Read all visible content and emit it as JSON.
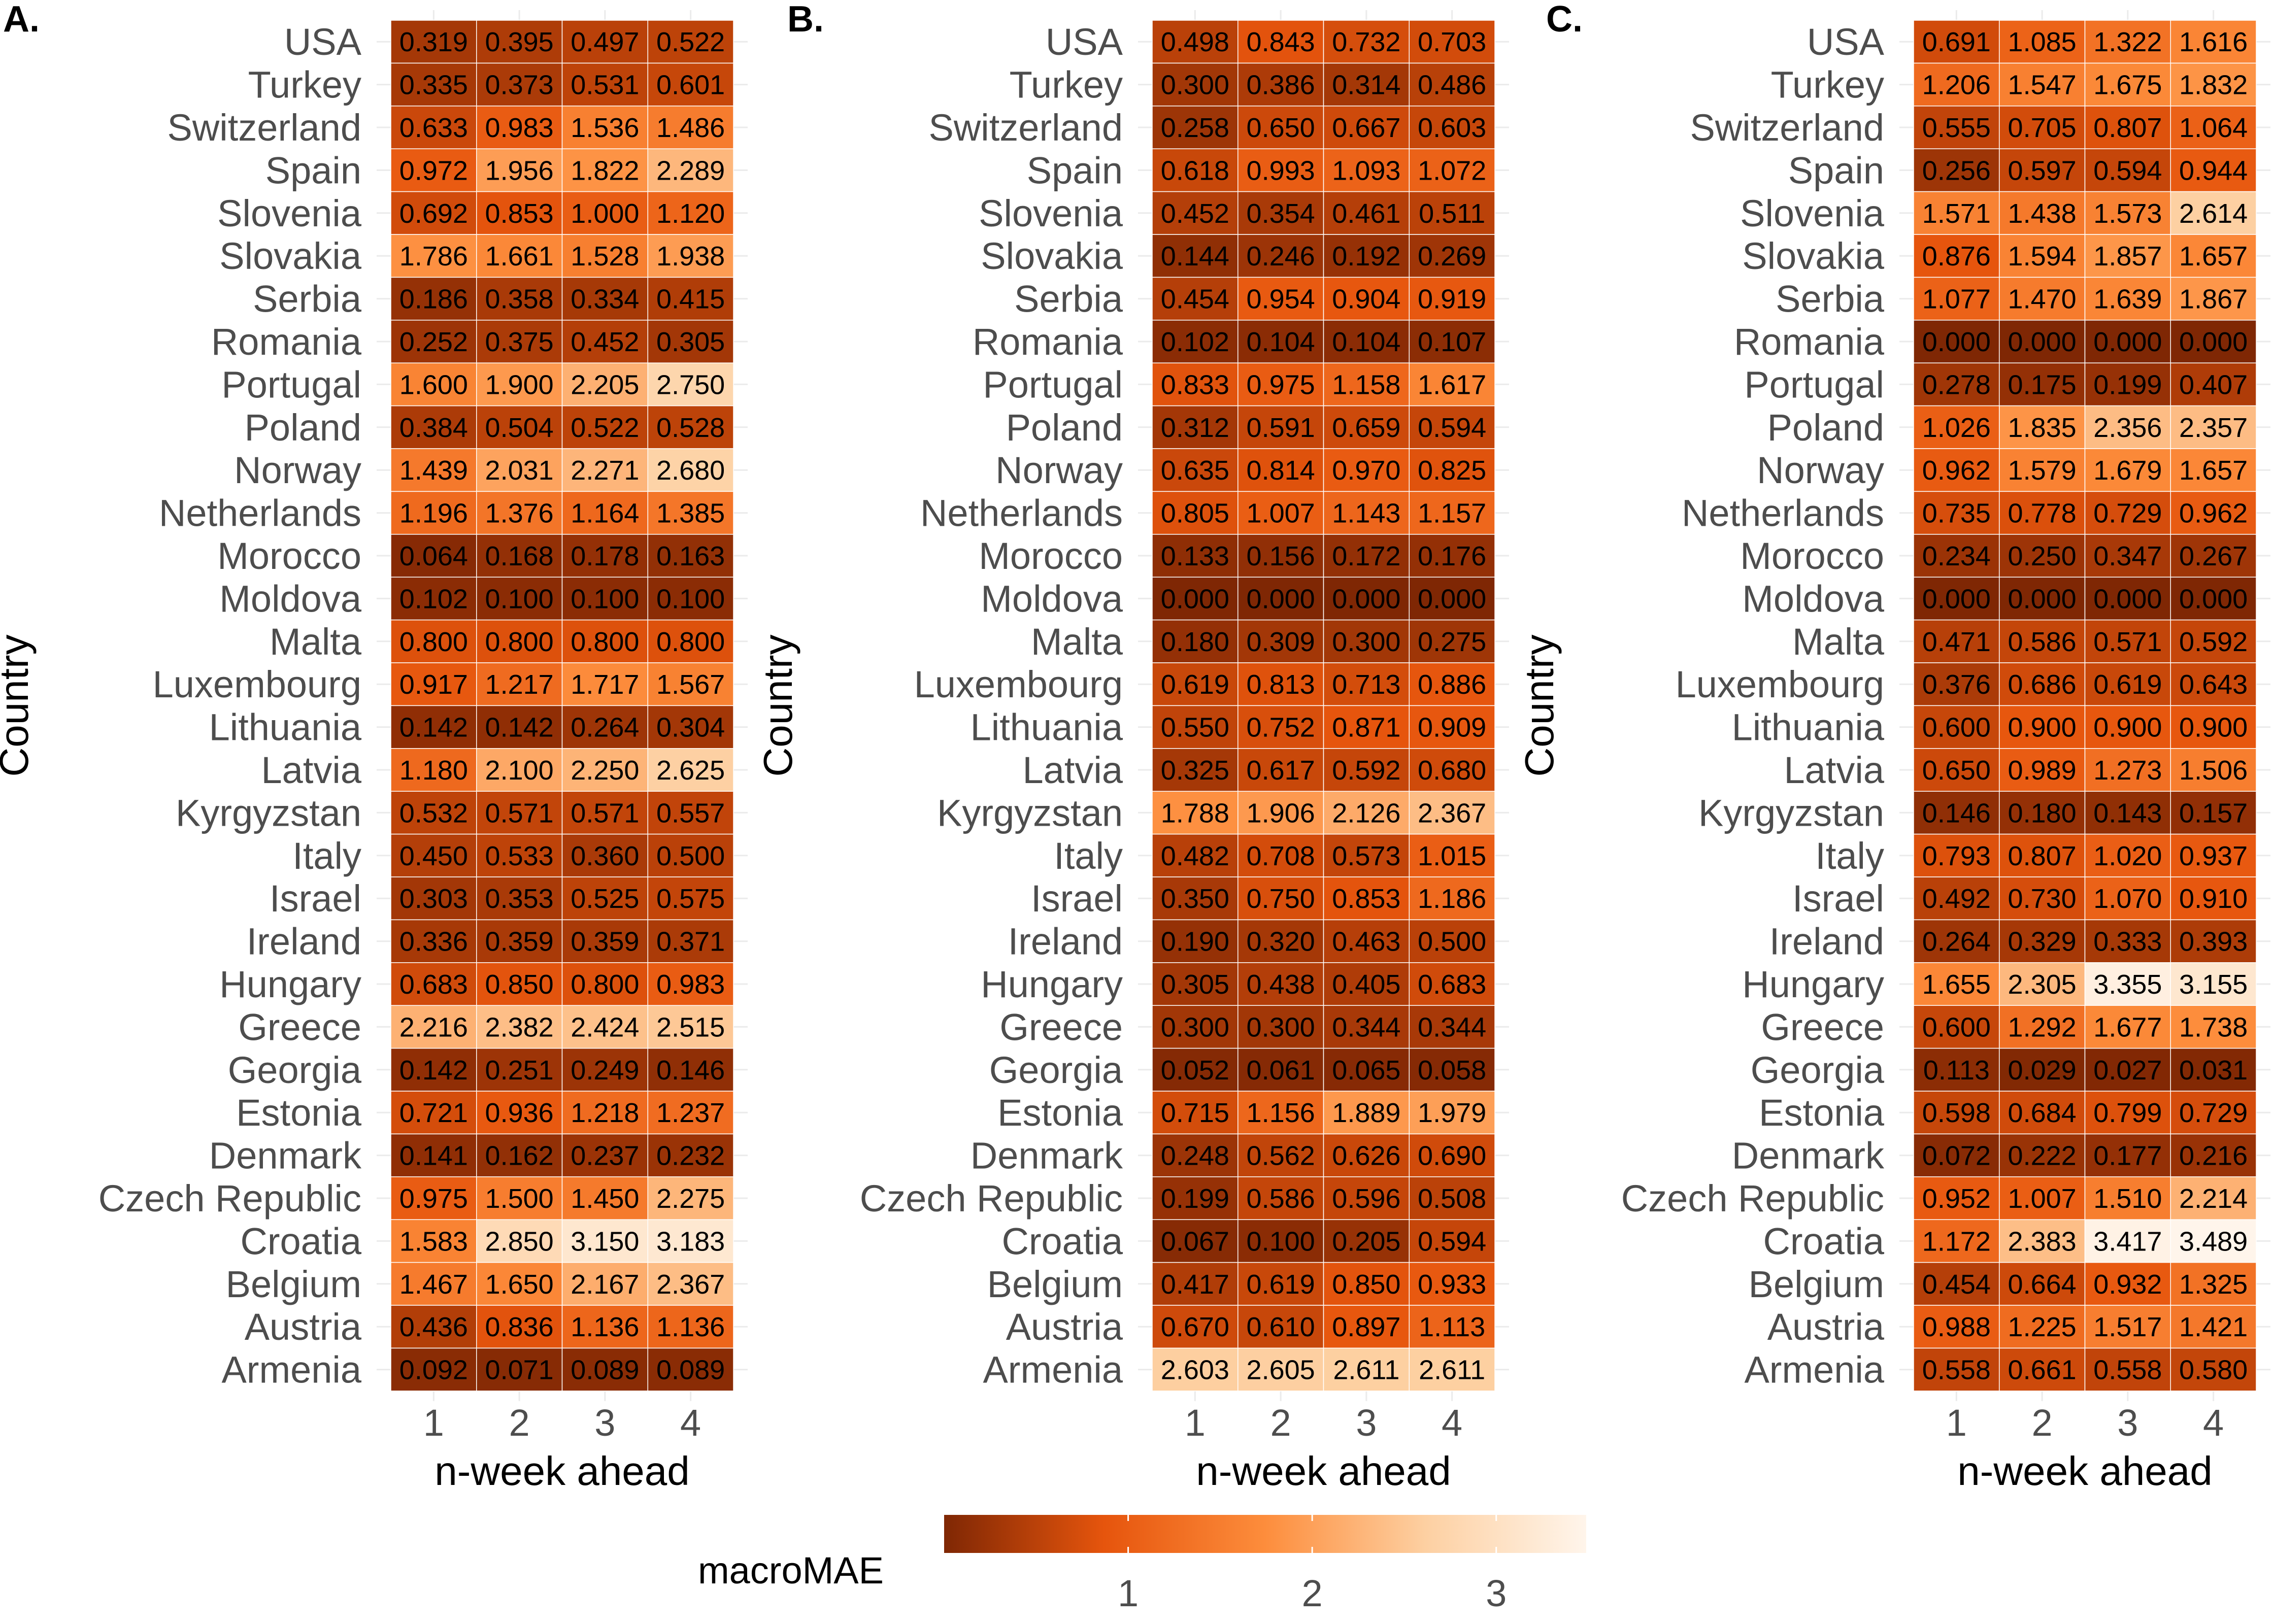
{
  "chart_data": [
    {
      "type": "heatmap",
      "panel": "A.",
      "xlabel": "n-week ahead",
      "ylabel": "Country",
      "x": [
        "1",
        "2",
        "3",
        "4"
      ],
      "countries": [
        "USA",
        "Turkey",
        "Switzerland",
        "Spain",
        "Slovenia",
        "Slovakia",
        "Serbia",
        "Romania",
        "Portugal",
        "Poland",
        "Norway",
        "Netherlands",
        "Morocco",
        "Moldova",
        "Malta",
        "Luxembourg",
        "Lithuania",
        "Latvia",
        "Kyrgyzstan",
        "Italy",
        "Israel",
        "Ireland",
        "Hungary",
        "Greece",
        "Georgia",
        "Estonia",
        "Denmark",
        "Czech Republic",
        "Croatia",
        "Belgium",
        "Austria",
        "Armenia"
      ],
      "values": [
        [
          "0.319",
          "0.395",
          "0.497",
          "0.522"
        ],
        [
          "0.335",
          "0.373",
          "0.531",
          "0.601"
        ],
        [
          "0.633",
          "0.983",
          "1.536",
          "1.486"
        ],
        [
          "0.972",
          "1.956",
          "1.822",
          "2.289"
        ],
        [
          "0.692",
          "0.853",
          "1.000",
          "1.120"
        ],
        [
          "1.786",
          "1.661",
          "1.528",
          "1.938"
        ],
        [
          "0.186",
          "0.358",
          "0.334",
          "0.415"
        ],
        [
          "0.252",
          "0.375",
          "0.452",
          "0.305"
        ],
        [
          "1.600",
          "1.900",
          "2.205",
          "2.750"
        ],
        [
          "0.384",
          "0.504",
          "0.522",
          "0.528"
        ],
        [
          "1.439",
          "2.031",
          "2.271",
          "2.680"
        ],
        [
          "1.196",
          "1.376",
          "1.164",
          "1.385"
        ],
        [
          "0.064",
          "0.168",
          "0.178",
          "0.163"
        ],
        [
          "0.102",
          "0.100",
          "0.100",
          "0.100"
        ],
        [
          "0.800",
          "0.800",
          "0.800",
          "0.800"
        ],
        [
          "0.917",
          "1.217",
          "1.717",
          "1.567"
        ],
        [
          "0.142",
          "0.142",
          "0.264",
          "0.304"
        ],
        [
          "1.180",
          "2.100",
          "2.250",
          "2.625"
        ],
        [
          "0.532",
          "0.571",
          "0.571",
          "0.557"
        ],
        [
          "0.450",
          "0.533",
          "0.360",
          "0.500"
        ],
        [
          "0.303",
          "0.353",
          "0.525",
          "0.575"
        ],
        [
          "0.336",
          "0.359",
          "0.359",
          "0.371"
        ],
        [
          "0.683",
          "0.850",
          "0.800",
          "0.983"
        ],
        [
          "2.216",
          "2.382",
          "2.424",
          "2.515"
        ],
        [
          "0.142",
          "0.251",
          "0.249",
          "0.146"
        ],
        [
          "0.721",
          "0.936",
          "1.218",
          "1.237"
        ],
        [
          "0.141",
          "0.162",
          "0.237",
          "0.232"
        ],
        [
          "0.975",
          "1.500",
          "1.450",
          "2.275"
        ],
        [
          "1.583",
          "2.850",
          "3.150",
          "3.183"
        ],
        [
          "1.467",
          "1.650",
          "2.167",
          "2.367"
        ],
        [
          "0.436",
          "0.836",
          "1.136",
          "1.136"
        ],
        [
          "0.092",
          "0.071",
          "0.089",
          "0.089"
        ]
      ]
    },
    {
      "type": "heatmap",
      "panel": "B.",
      "xlabel": "n-week ahead",
      "ylabel": "Country",
      "x": [
        "1",
        "2",
        "3",
        "4"
      ],
      "countries": [
        "USA",
        "Turkey",
        "Switzerland",
        "Spain",
        "Slovenia",
        "Slovakia",
        "Serbia",
        "Romania",
        "Portugal",
        "Poland",
        "Norway",
        "Netherlands",
        "Morocco",
        "Moldova",
        "Malta",
        "Luxembourg",
        "Lithuania",
        "Latvia",
        "Kyrgyzstan",
        "Italy",
        "Israel",
        "Ireland",
        "Hungary",
        "Greece",
        "Georgia",
        "Estonia",
        "Denmark",
        "Czech Republic",
        "Croatia",
        "Belgium",
        "Austria",
        "Armenia"
      ],
      "values": [
        [
          "0.498",
          "0.843",
          "0.732",
          "0.703"
        ],
        [
          "0.300",
          "0.386",
          "0.314",
          "0.486"
        ],
        [
          "0.258",
          "0.650",
          "0.667",
          "0.603"
        ],
        [
          "0.618",
          "0.993",
          "1.093",
          "1.072"
        ],
        [
          "0.452",
          "0.354",
          "0.461",
          "0.511"
        ],
        [
          "0.144",
          "0.246",
          "0.192",
          "0.269"
        ],
        [
          "0.454",
          "0.954",
          "0.904",
          "0.919"
        ],
        [
          "0.102",
          "0.104",
          "0.104",
          "0.107"
        ],
        [
          "0.833",
          "0.975",
          "1.158",
          "1.617"
        ],
        [
          "0.312",
          "0.591",
          "0.659",
          "0.594"
        ],
        [
          "0.635",
          "0.814",
          "0.970",
          "0.825"
        ],
        [
          "0.805",
          "1.007",
          "1.143",
          "1.157"
        ],
        [
          "0.133",
          "0.156",
          "0.172",
          "0.176"
        ],
        [
          "0.000",
          "0.000",
          "0.000",
          "0.000"
        ],
        [
          "0.180",
          "0.309",
          "0.300",
          "0.275"
        ],
        [
          "0.619",
          "0.813",
          "0.713",
          "0.886"
        ],
        [
          "0.550",
          "0.752",
          "0.871",
          "0.909"
        ],
        [
          "0.325",
          "0.617",
          "0.592",
          "0.680"
        ],
        [
          "1.788",
          "1.906",
          "2.126",
          "2.367"
        ],
        [
          "0.482",
          "0.708",
          "0.573",
          "1.015"
        ],
        [
          "0.350",
          "0.750",
          "0.853",
          "1.186"
        ],
        [
          "0.190",
          "0.320",
          "0.463",
          "0.500"
        ],
        [
          "0.305",
          "0.438",
          "0.405",
          "0.683"
        ],
        [
          "0.300",
          "0.300",
          "0.344",
          "0.344"
        ],
        [
          "0.052",
          "0.061",
          "0.065",
          "0.058"
        ],
        [
          "0.715",
          "1.156",
          "1.889",
          "1.979"
        ],
        [
          "0.248",
          "0.562",
          "0.626",
          "0.690"
        ],
        [
          "0.199",
          "0.586",
          "0.596",
          "0.508"
        ],
        [
          "0.067",
          "0.100",
          "0.205",
          "0.594"
        ],
        [
          "0.417",
          "0.619",
          "0.850",
          "0.933"
        ],
        [
          "0.670",
          "0.610",
          "0.897",
          "1.113"
        ],
        [
          "2.603",
          "2.605",
          "2.611",
          "2.611"
        ]
      ]
    },
    {
      "type": "heatmap",
      "panel": "C.",
      "xlabel": "n-week ahead",
      "ylabel": "Country",
      "x": [
        "1",
        "2",
        "3",
        "4"
      ],
      "countries": [
        "USA",
        "Turkey",
        "Switzerland",
        "Spain",
        "Slovenia",
        "Slovakia",
        "Serbia",
        "Romania",
        "Portugal",
        "Poland",
        "Norway",
        "Netherlands",
        "Morocco",
        "Moldova",
        "Malta",
        "Luxembourg",
        "Lithuania",
        "Latvia",
        "Kyrgyzstan",
        "Italy",
        "Israel",
        "Ireland",
        "Hungary",
        "Greece",
        "Georgia",
        "Estonia",
        "Denmark",
        "Czech Republic",
        "Croatia",
        "Belgium",
        "Austria",
        "Armenia"
      ],
      "values": [
        [
          "0.691",
          "1.085",
          "1.322",
          "1.616"
        ],
        [
          "1.206",
          "1.547",
          "1.675",
          "1.832"
        ],
        [
          "0.555",
          "0.705",
          "0.807",
          "1.064"
        ],
        [
          "0.256",
          "0.597",
          "0.594",
          "0.944"
        ],
        [
          "1.571",
          "1.438",
          "1.573",
          "2.614"
        ],
        [
          "0.876",
          "1.594",
          "1.857",
          "1.657"
        ],
        [
          "1.077",
          "1.470",
          "1.639",
          "1.867"
        ],
        [
          "0.000",
          "0.000",
          "0.000",
          "0.000"
        ],
        [
          "0.278",
          "0.175",
          "0.199",
          "0.407"
        ],
        [
          "1.026",
          "1.835",
          "2.356",
          "2.357"
        ],
        [
          "0.962",
          "1.579",
          "1.679",
          "1.657"
        ],
        [
          "0.735",
          "0.778",
          "0.729",
          "0.962"
        ],
        [
          "0.234",
          "0.250",
          "0.347",
          "0.267"
        ],
        [
          "0.000",
          "0.000",
          "0.000",
          "0.000"
        ],
        [
          "0.471",
          "0.586",
          "0.571",
          "0.592"
        ],
        [
          "0.376",
          "0.686",
          "0.619",
          "0.643"
        ],
        [
          "0.600",
          "0.900",
          "0.900",
          "0.900"
        ],
        [
          "0.650",
          "0.989",
          "1.273",
          "1.506"
        ],
        [
          "0.146",
          "0.180",
          "0.143",
          "0.157"
        ],
        [
          "0.793",
          "0.807",
          "1.020",
          "0.937"
        ],
        [
          "0.492",
          "0.730",
          "1.070",
          "0.910"
        ],
        [
          "0.264",
          "0.329",
          "0.333",
          "0.393"
        ],
        [
          "1.655",
          "2.305",
          "3.355",
          "3.155"
        ],
        [
          "0.600",
          "1.292",
          "1.677",
          "1.738"
        ],
        [
          "0.113",
          "0.029",
          "0.027",
          "0.031"
        ],
        [
          "0.598",
          "0.684",
          "0.799",
          "0.729"
        ],
        [
          "0.072",
          "0.222",
          "0.177",
          "0.216"
        ],
        [
          "0.952",
          "1.007",
          "1.510",
          "2.214"
        ],
        [
          "1.172",
          "2.383",
          "3.417",
          "3.489"
        ],
        [
          "0.454",
          "0.664",
          "0.932",
          "1.325"
        ],
        [
          "0.988",
          "1.225",
          "1.517",
          "1.421"
        ],
        [
          "0.558",
          "0.661",
          "0.558",
          "0.580"
        ]
      ]
    }
  ],
  "legend": {
    "title": "macroMAE",
    "ticks": [
      "1",
      "2",
      "3"
    ],
    "range": [
      0,
      3.489
    ],
    "colors": [
      "#7f2704",
      "#e6550d",
      "#fd8d3c",
      "#fdd0a2",
      "#fff5eb"
    ]
  }
}
